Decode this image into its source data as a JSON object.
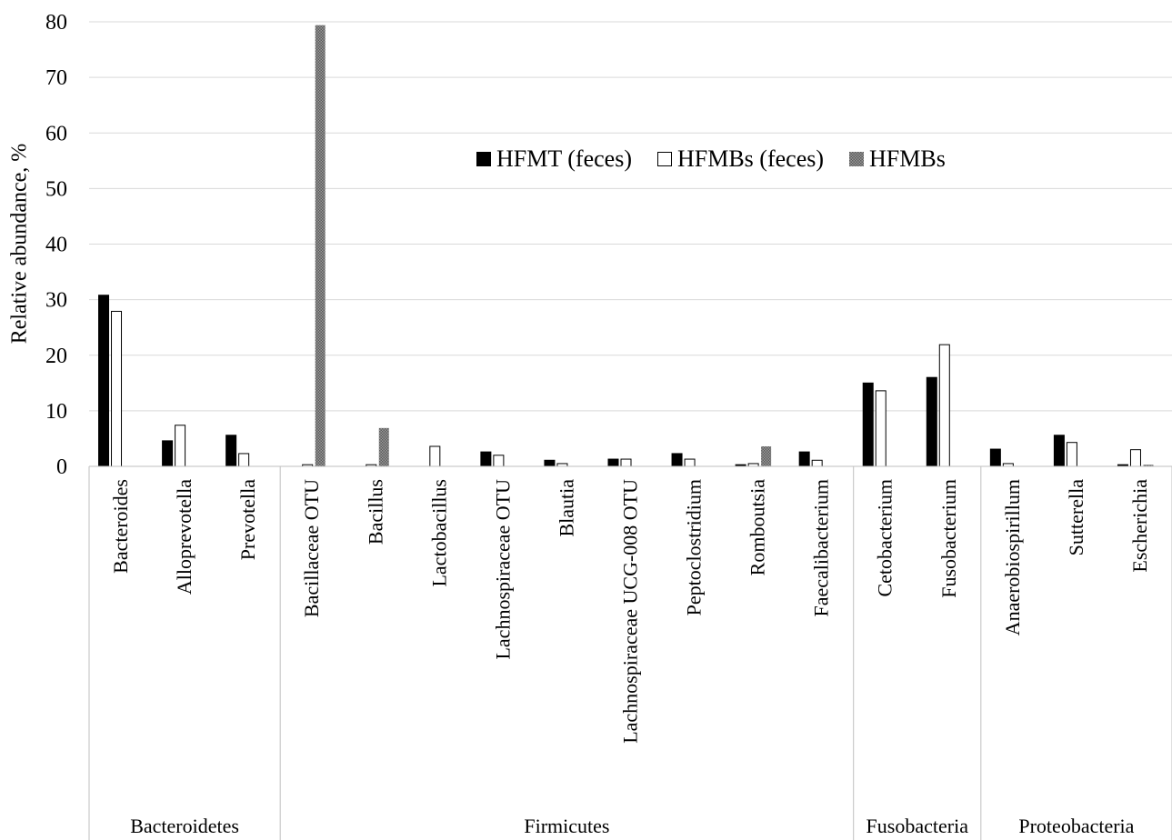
{
  "chart_data": {
    "type": "bar",
    "ylabel": "Relative abundance, %",
    "ylim": [
      0,
      80
    ],
    "yticks": [
      0,
      10,
      20,
      30,
      40,
      50,
      60,
      70,
      80
    ],
    "grid": true,
    "legend_position": "top-center",
    "categories": [
      "Bacteroides",
      "Alloprevotella",
      "Prevotella",
      "Bacillaceae OTU",
      "Bacillus",
      "Lactobacillus",
      "Lachnospiraceae OTU",
      "Blautia",
      "Lachnospiraceae UCG-008 OTU",
      "Peptoclostridium",
      "Romboutsia",
      "Faecalibacterium",
      "Cetobacterium",
      "Fusobacterium",
      "Anaerobiospirillum",
      "Sutterella",
      "Escherichia"
    ],
    "groups": [
      {
        "name": "Bacteroidetes",
        "count": 3
      },
      {
        "name": "Firmicutes",
        "count": 9
      },
      {
        "name": "Fusobacteria",
        "count": 2
      },
      {
        "name": "Proteobacteria",
        "count": 3
      }
    ],
    "series": [
      {
        "name": "HFMT (feces)",
        "color": "#000000",
        "fill": "solid",
        "values": [
          30.8,
          4.6,
          5.6,
          0,
          0,
          0,
          2.6,
          1.1,
          1.3,
          2.3,
          0.3,
          2.6,
          15.0,
          16.0,
          3.1,
          5.6,
          0.3
        ]
      },
      {
        "name": "HFMBs (feces)",
        "color": "#ffffff",
        "fill": "outline",
        "values": [
          27.9,
          7.4,
          2.3,
          0.3,
          0.3,
          3.6,
          2.0,
          0.5,
          1.3,
          1.3,
          0.5,
          1.1,
          13.6,
          21.9,
          0.5,
          4.3,
          3.0
        ]
      },
      {
        "name": "HFMBs",
        "color": "#8c8c8c",
        "fill": "hatched",
        "values": [
          0,
          0,
          0,
          79.4,
          6.9,
          0,
          0,
          0,
          0,
          0,
          3.6,
          0,
          0,
          0,
          0,
          0,
          0.3
        ]
      }
    ]
  }
}
